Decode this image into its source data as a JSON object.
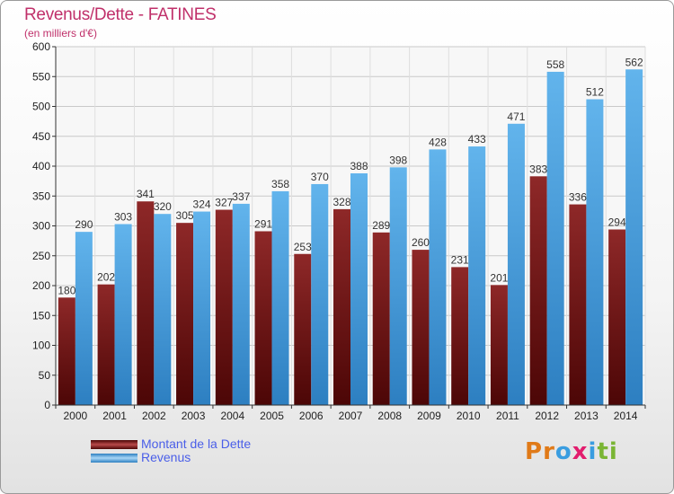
{
  "title": "Revenus/Dette - FATINES",
  "subtitle": "(en milliers d'€)",
  "logo": {
    "letters": [
      "P",
      "r",
      "o",
      "x",
      "i",
      "t",
      "i"
    ],
    "colors": [
      "#e07a18",
      "#e07a18",
      "#3a9de0",
      "#e21d6e",
      "#3a9de0",
      "#7ab534",
      "#7ab534"
    ]
  },
  "legend": [
    {
      "label": "Montant de la Dette",
      "color": "#7a1818"
    },
    {
      "label": "Revenus",
      "color": "#4aa0e0"
    }
  ],
  "chart_data": {
    "type": "bar",
    "title": "Revenus/Dette - FATINES",
    "subtitle": "(en milliers d'€)",
    "categories": [
      "2000",
      "2001",
      "2002",
      "2003",
      "2004",
      "2005",
      "2006",
      "2007",
      "2008",
      "2009",
      "2010",
      "2011",
      "2012",
      "2013",
      "2014"
    ],
    "series": [
      {
        "name": "Montant de la Dette",
        "color": "#7a1818",
        "values": [
          180,
          202,
          341,
          305,
          327,
          291,
          253,
          328,
          289,
          260,
          231,
          201,
          383,
          336,
          294
        ]
      },
      {
        "name": "Revenus",
        "color": "#4aa0e0",
        "values": [
          290,
          303,
          320,
          324,
          337,
          358,
          370,
          388,
          398,
          428,
          433,
          471,
          558,
          512,
          562
        ]
      }
    ],
    "ylim": [
      0,
      600
    ],
    "yticks": [
      0,
      50,
      100,
      150,
      200,
      250,
      300,
      350,
      400,
      450,
      500,
      550,
      600
    ],
    "grid": true,
    "legend_position": "bottom-left"
  }
}
